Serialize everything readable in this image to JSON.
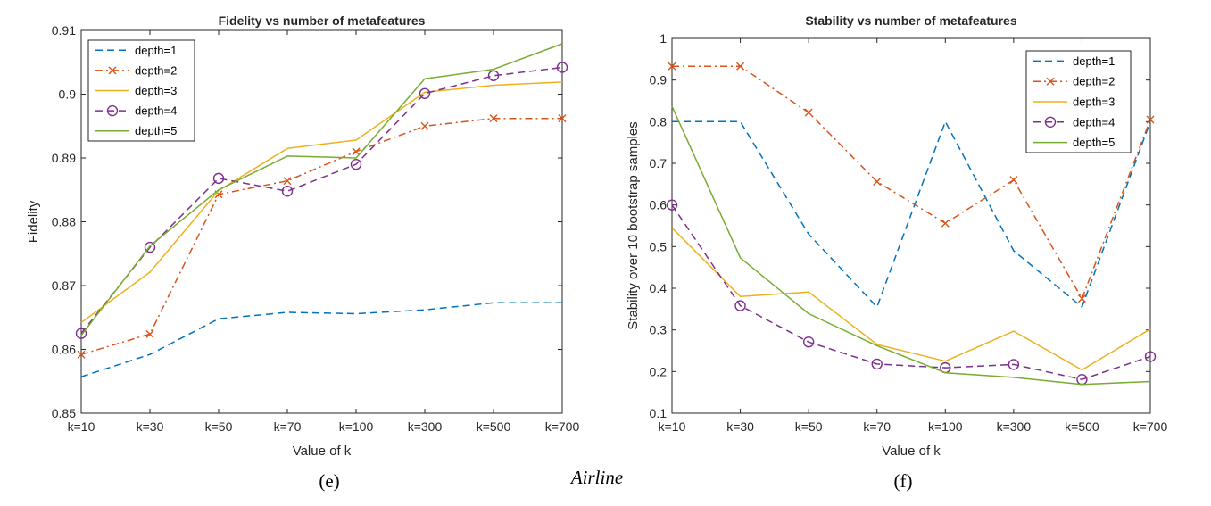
{
  "figure": {
    "caption_left": "(e)",
    "caption_center": "Airline",
    "caption_right": "(f)"
  },
  "colors": {
    "depth1": "#0072BD",
    "depth2": "#D95319",
    "depth3": "#EDB120",
    "depth4": "#7E2F8E",
    "depth5": "#77AC30",
    "axis": "#262626"
  },
  "chart_data": [
    {
      "type": "line",
      "title": "Fidelity vs number of metafeatures",
      "xlabel": "Value of k",
      "ylabel": "Fidelity",
      "categories": [
        "k=10",
        "k=30",
        "k=50",
        "k=70",
        "k=100",
        "k=300",
        "k=500",
        "k=700"
      ],
      "ylim": [
        0.85,
        0.91
      ],
      "yticks": [
        0.85,
        0.86,
        0.87,
        0.88,
        0.89,
        0.9,
        0.91
      ],
      "ytick_labels": [
        "0.85",
        "0.86",
        "0.87",
        "0.88",
        "0.89",
        "0.9",
        "0.91"
      ],
      "legend_position": "top-left",
      "series": [
        {
          "name": "depth=1",
          "color": "#0072BD",
          "dash": "dashed",
          "marker": "none",
          "values": [
            0.8557,
            0.8592,
            0.8648,
            0.8658,
            0.8656,
            0.8662,
            0.8673,
            0.8673
          ]
        },
        {
          "name": "depth=2",
          "color": "#D95319",
          "dash": "dashdot",
          "marker": "x",
          "values": [
            0.8592,
            0.8624,
            0.8843,
            0.8864,
            0.891,
            0.895,
            0.8962,
            0.8962
          ]
        },
        {
          "name": "depth=3",
          "color": "#EDB120",
          "dash": "solid",
          "marker": "none",
          "values": [
            0.8642,
            0.8721,
            0.8849,
            0.8915,
            0.8928,
            0.9003,
            0.9014,
            0.9019
          ]
        },
        {
          "name": "depth=4",
          "color": "#7E2F8E",
          "dash": "dashed",
          "marker": "o",
          "values": [
            0.8625,
            0.876,
            0.8868,
            0.8848,
            0.889,
            0.9001,
            0.9029,
            0.9042
          ]
        },
        {
          "name": "depth=5",
          "color": "#77AC30",
          "dash": "solid",
          "marker": "none",
          "values": [
            0.8622,
            0.8762,
            0.885,
            0.8903,
            0.89,
            0.9024,
            0.9039,
            0.9079
          ]
        }
      ]
    },
    {
      "type": "line",
      "title": "Stability vs number of metafeatures",
      "xlabel": "Value of k",
      "ylabel": "Stability over 10 bootstrap samples",
      "categories": [
        "k=10",
        "k=30",
        "k=50",
        "k=70",
        "k=100",
        "k=300",
        "k=500",
        "k=700"
      ],
      "ylim": [
        0.1,
        1.0
      ],
      "yticks": [
        0.1,
        0.2,
        0.3,
        0.4,
        0.5,
        0.6,
        0.7,
        0.8,
        0.9,
        1.0
      ],
      "ytick_labels": [
        "0.1",
        "0.2",
        "0.3",
        "0.4",
        "0.5",
        "0.6",
        "0.7",
        "0.8",
        "0.9",
        "1"
      ],
      "legend_position": "top-right",
      "series": [
        {
          "name": "depth=1",
          "color": "#0072BD",
          "dash": "dashed",
          "marker": "none",
          "values": [
            0.8,
            0.8,
            0.53,
            0.355,
            0.8,
            0.49,
            0.355,
            0.8
          ]
        },
        {
          "name": "depth=2",
          "color": "#D95319",
          "dash": "dashdot",
          "marker": "x",
          "values": [
            0.933,
            0.933,
            0.822,
            0.656,
            0.556,
            0.66,
            0.375,
            0.805
          ]
        },
        {
          "name": "depth=3",
          "color": "#EDB120",
          "dash": "solid",
          "marker": "none",
          "values": [
            0.545,
            0.38,
            0.391,
            0.265,
            0.225,
            0.297,
            0.204,
            0.302
          ]
        },
        {
          "name": "depth=4",
          "color": "#7E2F8E",
          "dash": "dashed",
          "marker": "o",
          "values": [
            0.6,
            0.358,
            0.271,
            0.218,
            0.209,
            0.217,
            0.181,
            0.236
          ]
        },
        {
          "name": "depth=5",
          "color": "#77AC30",
          "dash": "solid",
          "marker": "none",
          "values": [
            0.837,
            0.473,
            0.339,
            0.262,
            0.197,
            0.186,
            0.169,
            0.176
          ]
        }
      ]
    }
  ]
}
